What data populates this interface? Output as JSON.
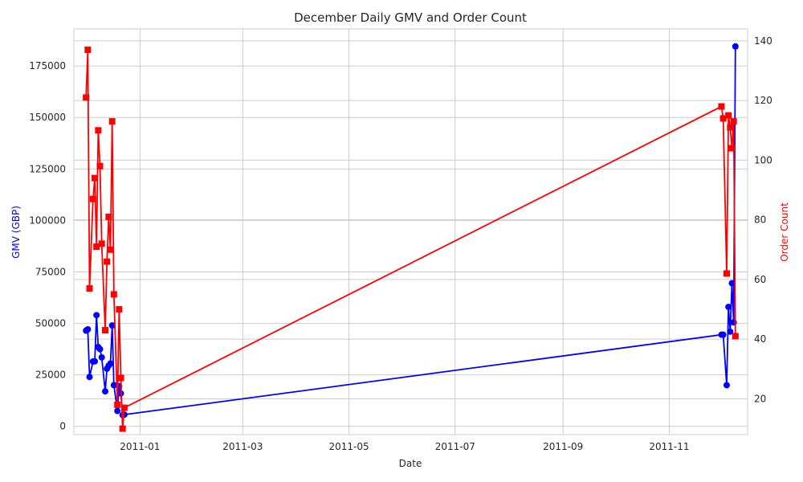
{
  "chart_data": {
    "type": "line",
    "title": "December Daily GMV and Order Count",
    "xlabel": "Date",
    "ylabel_left": "GMV (GBP)",
    "ylabel_right": "Order Count",
    "x_tick_labels": [
      "2011-01",
      "2011-03",
      "2011-05",
      "2011-07",
      "2011-09",
      "2011-11"
    ],
    "x_ticks": [
      "2011-01-01",
      "2011-03-01",
      "2011-05-01",
      "2011-07-01",
      "2011-09-01",
      "2011-11-01"
    ],
    "xlim": [
      "2010-11-24",
      "2011-12-16"
    ],
    "y_left_ticks": [
      0,
      25000,
      50000,
      75000,
      100000,
      125000,
      150000,
      175000
    ],
    "y_left_lim": [
      -4000,
      193000
    ],
    "y_right_ticks": [
      20,
      40,
      60,
      80,
      100,
      120,
      140
    ],
    "y_right_lim": [
      8,
      144
    ],
    "grid": true,
    "colors": {
      "gmv": "#0000ff",
      "orders": "#ff0000"
    },
    "series": [
      {
        "axis": "left",
        "marker": "circle",
        "color": "#0000ff",
        "points": [
          [
            "2010-12-01",
            46500
          ],
          [
            "2010-12-02",
            47100
          ],
          [
            "2010-12-03",
            24000
          ],
          [
            "2010-12-05",
            31500
          ],
          [
            "2010-12-06",
            31600
          ],
          [
            "2010-12-07",
            54000
          ],
          [
            "2010-12-08",
            38500
          ],
          [
            "2010-12-09",
            37500
          ],
          [
            "2010-12-10",
            33500
          ],
          [
            "2010-12-12",
            17000
          ],
          [
            "2010-12-13",
            28000
          ],
          [
            "2010-12-14",
            29500
          ],
          [
            "2010-12-15",
            30500
          ],
          [
            "2010-12-16",
            49000
          ],
          [
            "2010-12-17",
            20000
          ],
          [
            "2010-12-19",
            7500
          ],
          [
            "2010-12-20",
            19500
          ],
          [
            "2010-12-21",
            16000
          ],
          [
            "2010-12-22",
            5500
          ],
          [
            "2010-12-23",
            5700
          ],
          [
            "2011-12-01",
            44500
          ],
          [
            "2011-12-02",
            44500
          ],
          [
            "2011-12-04",
            20000
          ],
          [
            "2011-12-05",
            58000
          ],
          [
            "2011-12-06",
            46000
          ],
          [
            "2011-12-07",
            69500
          ],
          [
            "2011-12-08",
            50500
          ],
          [
            "2011-12-09",
            184500
          ]
        ]
      },
      {
        "axis": "right",
        "marker": "square",
        "color": "#ff0000",
        "points": [
          [
            "2010-12-01",
            121
          ],
          [
            "2010-12-02",
            137
          ],
          [
            "2010-12-03",
            57
          ],
          [
            "2010-12-05",
            87
          ],
          [
            "2010-12-06",
            94
          ],
          [
            "2010-12-07",
            71
          ],
          [
            "2010-12-08",
            110
          ],
          [
            "2010-12-09",
            98
          ],
          [
            "2010-12-10",
            72
          ],
          [
            "2010-12-12",
            43
          ],
          [
            "2010-12-13",
            66
          ],
          [
            "2010-12-14",
            81
          ],
          [
            "2010-12-15",
            70
          ],
          [
            "2010-12-16",
            113
          ],
          [
            "2010-12-17",
            55
          ],
          [
            "2010-12-19",
            18
          ],
          [
            "2010-12-20",
            50
          ],
          [
            "2010-12-21",
            27
          ],
          [
            "2010-12-22",
            10
          ],
          [
            "2010-12-23",
            17
          ],
          [
            "2011-12-01",
            118
          ],
          [
            "2011-12-02",
            114
          ],
          [
            "2011-12-04",
            62
          ],
          [
            "2011-12-05",
            115
          ],
          [
            "2011-12-06",
            111
          ],
          [
            "2011-12-07",
            104
          ],
          [
            "2011-12-08",
            113
          ],
          [
            "2011-12-09",
            41
          ]
        ]
      }
    ]
  }
}
